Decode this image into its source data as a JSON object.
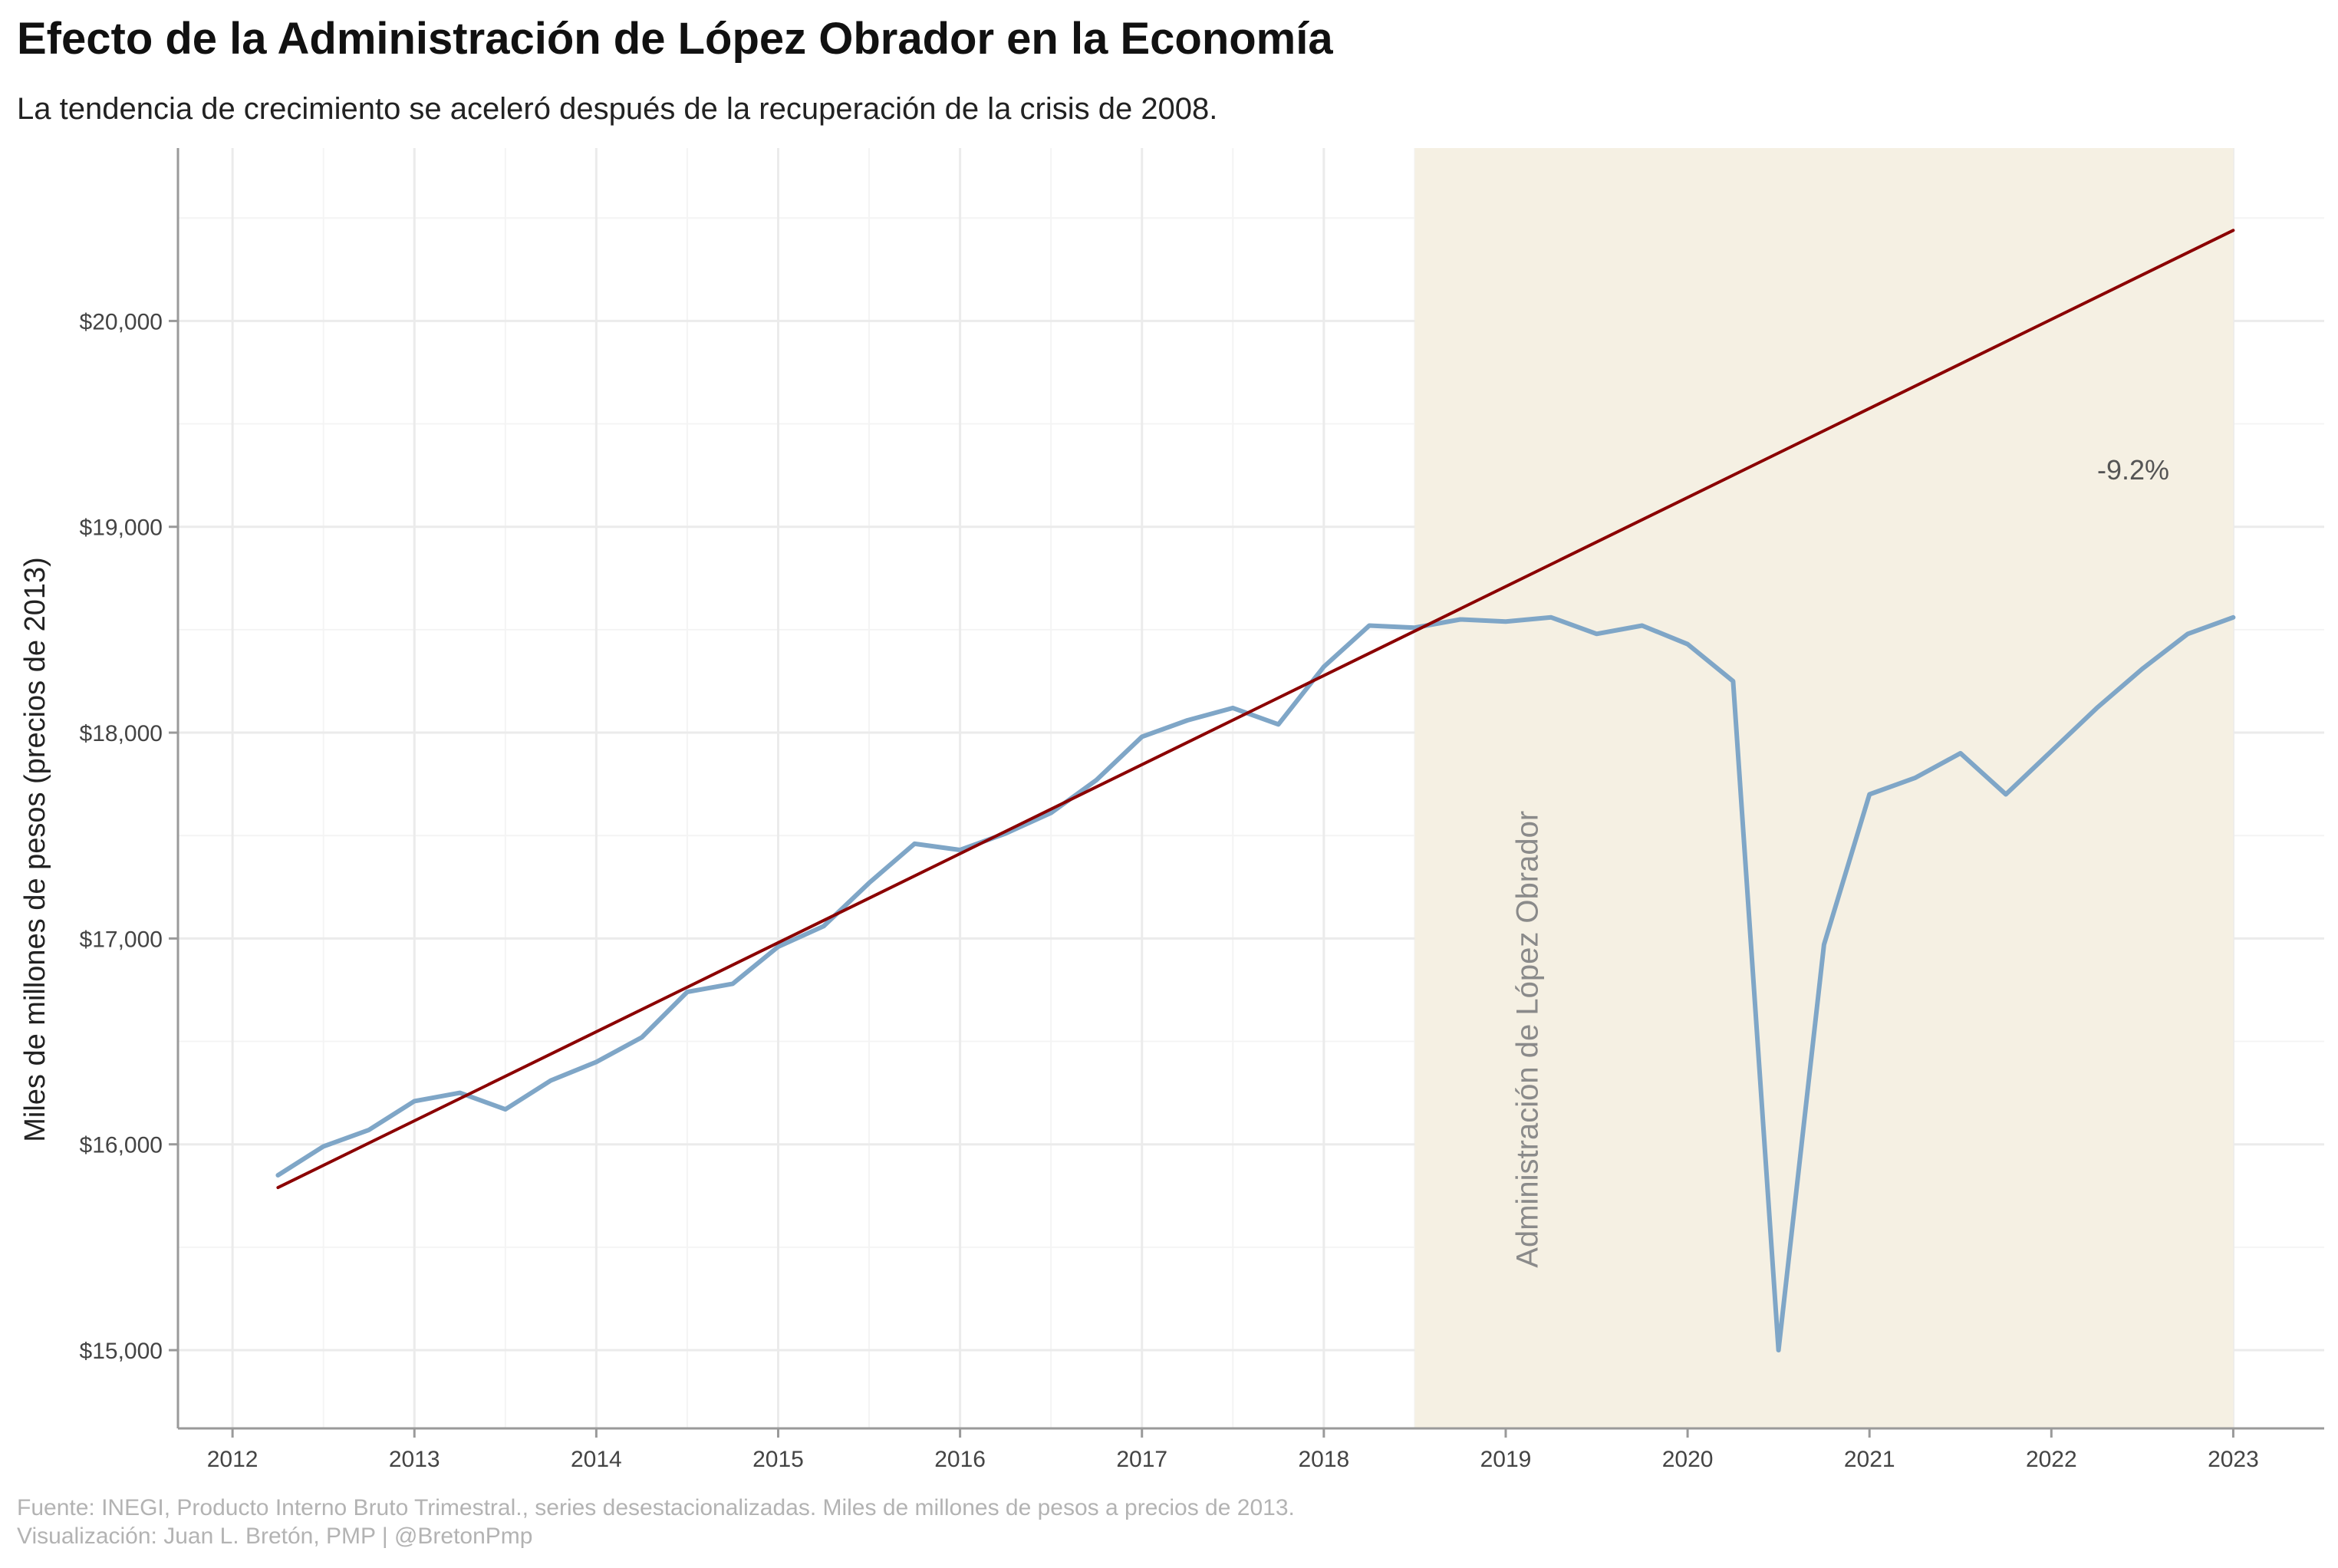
{
  "chart_data": {
    "type": "line",
    "title": "Efecto de la Administración de López Obrador en la Economía",
    "subtitle": "La tendencia de crecimiento se aceleró después de la recuperación de la crisis de 2008.",
    "ylabel": "Miles de millones de pesos (precios de 2013)",
    "xlabel": "",
    "caption_lines": [
      "Fuente: INEGI, Producto Interno Bruto Trimestral., series desestacionalizadas. Miles de millones de pesos a precios de 2013.",
      "Visualización: Juan L. Bretón, PMP | @BretonPmp"
    ],
    "xlim": [
      2011.7,
      2023.5
    ],
    "ylim": [
      14620,
      20840
    ],
    "x_ticks": [
      2012,
      2013,
      2014,
      2015,
      2016,
      2017,
      2018,
      2019,
      2020,
      2021,
      2022,
      2023
    ],
    "x_tick_labels": [
      "2012",
      "2013",
      "2014",
      "2015",
      "2016",
      "2017",
      "2018",
      "2019",
      "2020",
      "2021",
      "2022",
      "2023"
    ],
    "y_ticks": [
      15000,
      16000,
      17000,
      18000,
      19000,
      20000
    ],
    "y_tick_labels": [
      "$15,000",
      "$16,000",
      "$17,000",
      "$18,000",
      "$19,000",
      "$20,000"
    ],
    "grid": true,
    "shaded_region": {
      "x_range": [
        2018.5,
        2023.0
      ],
      "label": "Administración de López Obrador",
      "color": "#f5f0e3"
    },
    "annotations": [
      {
        "text": "-9.2%",
        "x": 2022.45,
        "y": 19230
      }
    ],
    "series": [
      {
        "color": "#7fa6c7",
        "x": [
          2012.25,
          2012.5,
          2012.75,
          2013.0,
          2013.25,
          2013.5,
          2013.75,
          2014.0,
          2014.25,
          2014.5,
          2014.75,
          2015.0,
          2015.25,
          2015.5,
          2015.75,
          2016.0,
          2016.25,
          2016.5,
          2016.75,
          2017.0,
          2017.25,
          2017.5,
          2017.75,
          2018.0,
          2018.25,
          2018.5,
          2018.75,
          2019.0,
          2019.25,
          2019.5,
          2019.75,
          2020.0,
          2020.25,
          2020.5,
          2020.75,
          2021.0,
          2021.25,
          2021.5,
          2021.75,
          2022.0,
          2022.25,
          2022.5,
          2022.75,
          2023.0
        ],
        "values": [
          15850,
          15990,
          16070,
          16210,
          16250,
          16170,
          16310,
          16400,
          16520,
          16740,
          16780,
          16960,
          17060,
          17270,
          17460,
          17430,
          17510,
          17610,
          17770,
          17980,
          18060,
          18120,
          18040,
          18320,
          18520,
          18510,
          18550,
          18540,
          18560,
          18480,
          18520,
          18430,
          18250,
          15000,
          16970,
          17700,
          17780,
          17900,
          17700,
          17910,
          18120,
          18310,
          18480,
          18560
        ]
      },
      {
        "color": "#8b0000",
        "x": [
          2012.25,
          2023.0
        ],
        "values": [
          15790,
          20440
        ]
      }
    ]
  }
}
